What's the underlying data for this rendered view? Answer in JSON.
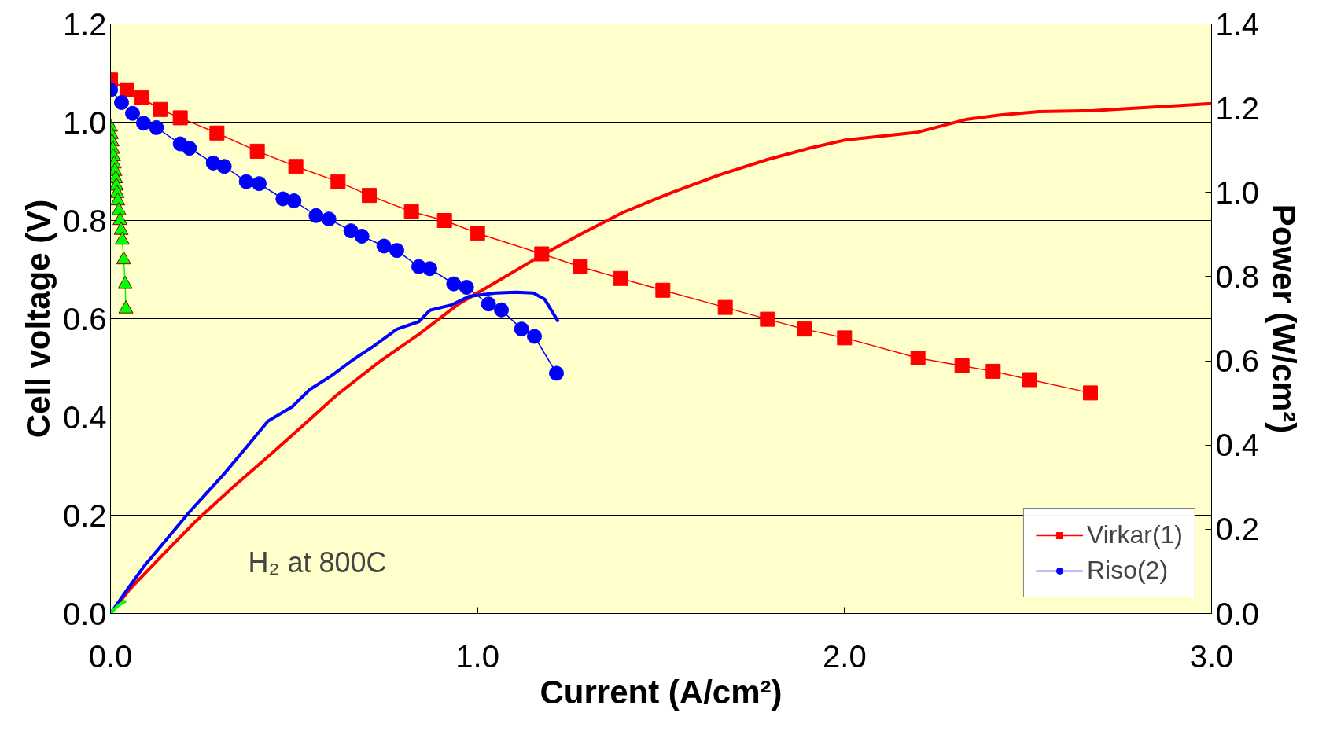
{
  "chart_data": {
    "type": "line",
    "xlabel": "Current (A/cm²)",
    "ylabel": "Cell voltage (V)",
    "y2label": "Power (W/cm²)",
    "xlim": [
      0,
      3
    ],
    "xticks": [
      {
        "value": 0,
        "label": "0.0"
      },
      {
        "value": 1,
        "label": "1.0"
      },
      {
        "value": 2,
        "label": "2.0"
      },
      {
        "value": 3,
        "label": "3.0"
      }
    ],
    "ylim": [
      0,
      1.2
    ],
    "yticks": [
      {
        "value": 0,
        "label": "0.0"
      },
      {
        "value": 0.2,
        "label": "0.2"
      },
      {
        "value": 0.4,
        "label": "0.4"
      },
      {
        "value": 0.6,
        "label": "0.6"
      },
      {
        "value": 0.8,
        "label": "0.8"
      },
      {
        "value": 1.0,
        "label": "1.0"
      },
      {
        "value": 1.2,
        "label": "1.2"
      }
    ],
    "y2lim": [
      0,
      1.4
    ],
    "y2ticks": [
      {
        "value": 0,
        "label": "0.0"
      },
      {
        "value": 0.2,
        "label": "0.2"
      },
      {
        "value": 0.4,
        "label": "0.4"
      },
      {
        "value": 0.6,
        "label": "0.6"
      },
      {
        "value": 0.8,
        "label": "0.8"
      },
      {
        "value": 1.0,
        "label": "1.0"
      },
      {
        "value": 1.2,
        "label": "1.2"
      },
      {
        "value": 1.4,
        "label": "1.4"
      }
    ],
    "grid": "y",
    "legend": "bottom right",
    "annotations": [
      "H₂ at 800C"
    ],
    "series": [
      {
        "name": "Virkar(1)",
        "color": "#ff0000",
        "marker": "square",
        "x": [
          0,
          0.045,
          0.085,
          0.135,
          0.19,
          0.29,
          0.4,
          0.505,
          0.62,
          0.705,
          0.82,
          0.91,
          1.0,
          1.175,
          1.28,
          1.39,
          1.505,
          1.675,
          1.79,
          1.89,
          2.0,
          2.2,
          2.32,
          2.405,
          2.505,
          2.67
        ],
        "values": [
          1.086,
          1.066,
          1.05,
          1.026,
          1.009,
          0.978,
          0.941,
          0.91,
          0.879,
          0.851,
          0.818,
          0.8,
          0.774,
          0.732,
          0.706,
          0.682,
          0.658,
          0.623,
          0.599,
          0.579,
          0.561,
          0.52,
          0.504,
          0.493,
          0.476,
          0.449
        ]
      },
      {
        "name": "Riso(2)",
        "color": "#0000ff",
        "marker": "circle",
        "x": [
          0,
          0.03,
          0.06,
          0.09,
          0.125,
          0.19,
          0.215,
          0.28,
          0.31,
          0.37,
          0.405,
          0.47,
          0.5,
          0.56,
          0.595,
          0.655,
          0.685,
          0.745,
          0.78,
          0.84,
          0.87,
          0.935,
          0.97,
          1.03,
          1.065,
          1.12,
          1.155,
          1.215
        ],
        "values": [
          1.066,
          1.04,
          1.018,
          0.998,
          0.989,
          0.956,
          0.947,
          0.917,
          0.91,
          0.879,
          0.875,
          0.844,
          0.84,
          0.81,
          0.803,
          0.779,
          0.768,
          0.748,
          0.739,
          0.706,
          0.702,
          0.671,
          0.664,
          0.63,
          0.618,
          0.579,
          0.564,
          0.489
        ]
      },
      {
        "color": "#00ff00",
        "marker": "triangle",
        "x": [
          0,
          0.002,
          0.004,
          0.006,
          0.008,
          0.01,
          0.012,
          0.014,
          0.016,
          0.018,
          0.02,
          0.023,
          0.026,
          0.029,
          0.032,
          0.036,
          0.04,
          0.042
        ],
        "values": [
          0.99,
          0.975,
          0.96,
          0.945,
          0.93,
          0.915,
          0.9,
          0.885,
          0.87,
          0.855,
          0.84,
          0.82,
          0.8,
          0.78,
          0.76,
          0.72,
          0.67,
          0.62
        ]
      },
      {
        "color": "#ff0000",
        "marker": "none",
        "axis": "y2",
        "x": [
          0,
          0.055,
          0.14,
          0.23,
          0.336,
          0.442,
          0.548,
          0.614,
          0.733,
          0.84,
          0.945,
          1.062,
          1.175,
          1.29,
          1.395,
          1.527,
          1.66,
          1.79,
          1.9,
          2.0,
          2.2,
          2.33,
          2.425,
          2.53,
          2.68,
          3.0
        ],
        "values": [
          0,
          0.06,
          0.137,
          0.217,
          0.302,
          0.382,
          0.465,
          0.517,
          0.598,
          0.663,
          0.733,
          0.793,
          0.851,
          0.905,
          0.952,
          0.999,
          1.042,
          1.078,
          1.104,
          1.124,
          1.143,
          1.173,
          1.184,
          1.192,
          1.194,
          1.211
        ]
      },
      {
        "color": "#0000ff",
        "marker": "none",
        "axis": "y2",
        "x": [
          0,
          0.045,
          0.093,
          0.151,
          0.212,
          0.31,
          0.376,
          0.429,
          0.495,
          0.543,
          0.601,
          0.66,
          0.717,
          0.78,
          0.84,
          0.87,
          0.93,
          0.977,
          1.05,
          1.104,
          1.152,
          1.183,
          1.22
        ],
        "values": [
          0,
          0.056,
          0.114,
          0.174,
          0.238,
          0.332,
          0.401,
          0.457,
          0.491,
          0.532,
          0.564,
          0.602,
          0.635,
          0.675,
          0.693,
          0.72,
          0.733,
          0.753,
          0.761,
          0.763,
          0.761,
          0.746,
          0.693
        ]
      },
      {
        "color": "#00ff00",
        "marker": "none",
        "axis": "y2",
        "x": [
          0,
          0.01,
          0.02,
          0.03,
          0.042
        ],
        "values": [
          0,
          0.01,
          0.018,
          0.024,
          0.03
        ]
      }
    ]
  }
}
